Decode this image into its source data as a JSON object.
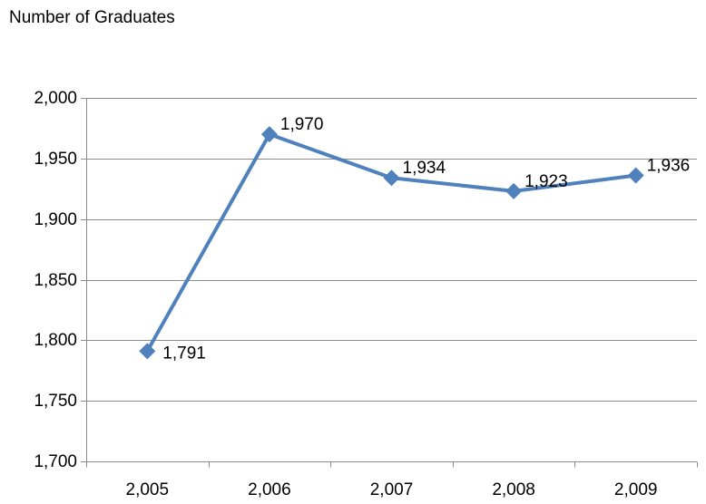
{
  "chart_data": {
    "type": "line",
    "title": "Number of Graduates",
    "x": [
      "2,005",
      "2,006",
      "2,007",
      "2,008",
      "2,009"
    ],
    "series": [
      {
        "values": [
          1791,
          1970,
          1934,
          1923,
          1936
        ],
        "labels": [
          "1,791",
          "1,970",
          "1,934",
          "1,923",
          "1,936"
        ],
        "color": "#4f81bd"
      }
    ],
    "ylim": [
      1700,
      2000
    ],
    "yticks": [
      1700,
      1750,
      1800,
      1850,
      1900,
      1950,
      2000
    ],
    "ytick_labels": [
      "1,700",
      "1,750",
      "1,800",
      "1,850",
      "1,900",
      "1,950",
      "2,000"
    ],
    "grid": true,
    "gridline_color": "#8c8c8c",
    "axis_color": "#8c8c8c",
    "marker": "diamond",
    "legend": "none"
  }
}
